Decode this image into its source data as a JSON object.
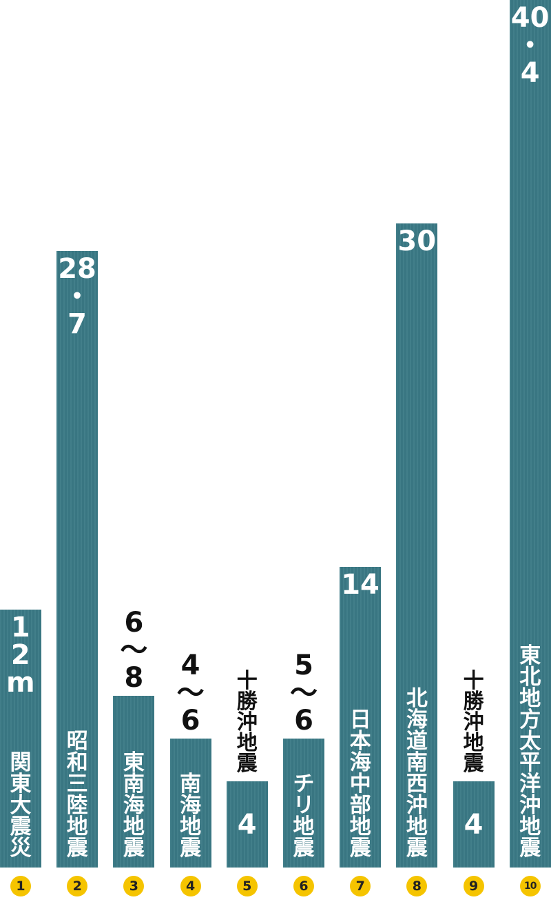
{
  "chart_data": {
    "type": "bar",
    "unit": "m",
    "ylim": [
      0,
      40.4
    ],
    "bars": [
      {
        "index": "1",
        "name": "関東大震災",
        "value": 12,
        "value_label": [
          "1",
          "2",
          "m"
        ]
      },
      {
        "index": "2",
        "name": "昭和三陸地震",
        "value": 28.7,
        "value_label": [
          "28",
          "・",
          "7"
        ]
      },
      {
        "index": "3",
        "name": "東南海地震",
        "value": 8,
        "value_label": [
          "6",
          "～",
          "8"
        ]
      },
      {
        "index": "4",
        "name": "南海地震",
        "value": 6,
        "value_label": [
          "4",
          "～",
          "6"
        ]
      },
      {
        "index": "5",
        "name": "十勝沖地震",
        "value": 4,
        "value_label": [
          "4"
        ]
      },
      {
        "index": "6",
        "name": "チリ地震",
        "value": 6,
        "value_label": [
          "5",
          "～",
          "6"
        ]
      },
      {
        "index": "7",
        "name": "日本海中部地震",
        "value": 14,
        "value_label": [
          "14"
        ]
      },
      {
        "index": "8",
        "name": "北海道南西沖地震",
        "value": 30,
        "value_label": [
          "30"
        ]
      },
      {
        "index": "9",
        "name": "十勝沖地震",
        "value": 4,
        "value_label": [
          "4"
        ]
      },
      {
        "index": "10",
        "name": "東北地方太平洋沖地震",
        "value": 40.4,
        "value_label": [
          "40",
          "・",
          "4"
        ]
      }
    ]
  }
}
